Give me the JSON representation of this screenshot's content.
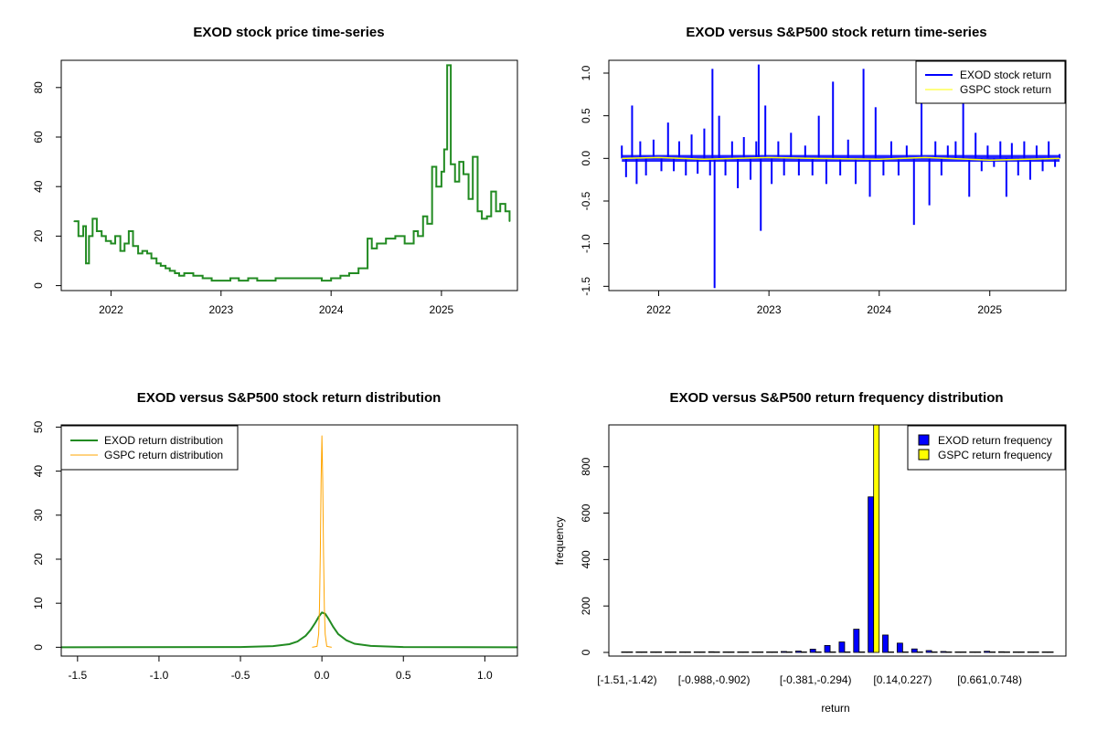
{
  "colors": {
    "price_line": "#228B22",
    "exod_return": "#0000FF",
    "gspc_return": "#FFFF00",
    "exod_density": "#228B22",
    "gspc_density": "#FFA500",
    "exod_hist": "#0000FF",
    "gspc_hist": "#FFFF00",
    "axis": "#000000"
  },
  "chart_data": [
    {
      "id": "price",
      "type": "line",
      "title": "EXOD stock price time-series",
      "xlabel": "",
      "ylabel": "",
      "x_scale": "date",
      "xlim": [
        "2021-07-20",
        "2025-09-10"
      ],
      "ylim": [
        -2,
        91
      ],
      "x_ticks": [
        {
          "label": "2022",
          "value": "2022-01-01"
        },
        {
          "label": "2023",
          "value": "2023-01-01"
        },
        {
          "label": "2024",
          "value": "2024-01-01"
        },
        {
          "label": "2025",
          "value": "2025-01-01"
        }
      ],
      "y_ticks": [
        0,
        20,
        40,
        60,
        80
      ],
      "series": [
        {
          "color_key": "price_line",
          "x": [
            "2021-09-01",
            "2021-09-15",
            "2021-10-01",
            "2021-10-10",
            "2021-10-20",
            "2021-11-01",
            "2021-11-15",
            "2021-12-01",
            "2021-12-15",
            "2022-01-01",
            "2022-01-15",
            "2022-02-01",
            "2022-02-15",
            "2022-03-01",
            "2022-03-15",
            "2022-04-01",
            "2022-04-15",
            "2022-05-01",
            "2022-05-15",
            "2022-06-01",
            "2022-06-15",
            "2022-07-01",
            "2022-07-15",
            "2022-08-01",
            "2022-08-15",
            "2022-09-01",
            "2022-10-01",
            "2022-11-01",
            "2022-12-01",
            "2023-01-01",
            "2023-02-01",
            "2023-03-01",
            "2023-04-01",
            "2023-05-01",
            "2023-06-01",
            "2023-07-01",
            "2023-08-01",
            "2023-09-01",
            "2023-10-01",
            "2023-11-01",
            "2023-12-01",
            "2024-01-01",
            "2024-02-01",
            "2024-03-01",
            "2024-04-01",
            "2024-05-01",
            "2024-05-15",
            "2024-06-01",
            "2024-07-01",
            "2024-08-01",
            "2024-09-01",
            "2024-10-01",
            "2024-10-15",
            "2024-11-01",
            "2024-11-15",
            "2024-12-01",
            "2024-12-15",
            "2025-01-01",
            "2025-01-10",
            "2025-01-20",
            "2025-02-01",
            "2025-02-15",
            "2025-03-01",
            "2025-03-15",
            "2025-04-01",
            "2025-04-15",
            "2025-05-01",
            "2025-05-15",
            "2025-06-01",
            "2025-06-15",
            "2025-07-01",
            "2025-07-15",
            "2025-08-01",
            "2025-08-15"
          ],
          "y": [
            26,
            20,
            24,
            9,
            20,
            27,
            22,
            20,
            18,
            17,
            20,
            14,
            17,
            22,
            16,
            13,
            14,
            13,
            11,
            9,
            8,
            7,
            6,
            5,
            4,
            5,
            4,
            3,
            2,
            2,
            3,
            2,
            3,
            2,
            2,
            3,
            3,
            3,
            3,
            3,
            2,
            3,
            4,
            5,
            7,
            19,
            15,
            17,
            19,
            20,
            17,
            22,
            20,
            28,
            25,
            48,
            40,
            46,
            55,
            89,
            49,
            42,
            50,
            45,
            35,
            52,
            30,
            27,
            28,
            38,
            30,
            33,
            30,
            26
          ]
        }
      ]
    },
    {
      "id": "returns",
      "type": "line",
      "title": "EXOD versus S&P500 stock return time-series",
      "xlabel": "",
      "ylabel": "",
      "x_scale": "date",
      "xlim": [
        "2021-07-20",
        "2025-09-10"
      ],
      "ylim": [
        -1.55,
        1.15
      ],
      "x_ticks": [
        {
          "label": "2022",
          "value": "2022-01-01"
        },
        {
          "label": "2023",
          "value": "2023-01-01"
        },
        {
          "label": "2024",
          "value": "2024-01-01"
        },
        {
          "label": "2025",
          "value": "2025-01-01"
        }
      ],
      "y_ticks": [
        {
          "label": "-1.5",
          "value": -1.5
        },
        {
          "label": "-1.0",
          "value": -1.0
        },
        {
          "label": "-0.5",
          "value": -0.5
        },
        {
          "label": "0.0",
          "value": 0.0
        },
        {
          "label": "0.5",
          "value": 0.5
        },
        {
          "label": "1.0",
          "value": 1.0
        }
      ],
      "legend": {
        "position": "top-right",
        "entries": [
          "EXOD stock return",
          "GSPC stock return"
        ]
      },
      "series": [
        {
          "name": "EXOD stock return",
          "color_key": "exod_return",
          "x": [
            "2021-09-01",
            "2021-09-15",
            "2021-10-05",
            "2021-10-20",
            "2021-11-01",
            "2021-11-20",
            "2021-12-15",
            "2022-01-10",
            "2022-02-01",
            "2022-02-20",
            "2022-03-10",
            "2022-04-01",
            "2022-04-20",
            "2022-05-10",
            "2022-06-01",
            "2022-06-20",
            "2022-06-28",
            "2022-07-05",
            "2022-07-20",
            "2022-08-10",
            "2022-09-01",
            "2022-09-20",
            "2022-10-10",
            "2022-11-01",
            "2022-11-20",
            "2022-11-28",
            "2022-12-05",
            "2022-12-20",
            "2023-01-10",
            "2023-02-01",
            "2023-02-20",
            "2023-03-15",
            "2023-04-10",
            "2023-05-01",
            "2023-05-25",
            "2023-06-15",
            "2023-07-10",
            "2023-08-01",
            "2023-08-25",
            "2023-09-20",
            "2023-10-15",
            "2023-11-10",
            "2023-12-01",
            "2023-12-20",
            "2024-01-15",
            "2024-02-10",
            "2024-03-05",
            "2024-04-01",
            "2024-04-25",
            "2024-05-20",
            "2024-06-15",
            "2024-07-05",
            "2024-07-25",
            "2024-08-15",
            "2024-09-10",
            "2024-10-05",
            "2024-10-25",
            "2024-11-15",
            "2024-12-05",
            "2024-12-25",
            "2025-01-15",
            "2025-02-05",
            "2025-02-25",
            "2025-03-15",
            "2025-04-05",
            "2025-04-25",
            "2025-05-15",
            "2025-06-05",
            "2025-06-25",
            "2025-07-15",
            "2025-08-05",
            "2025-08-20"
          ],
          "y": [
            0.15,
            -0.22,
            0.62,
            -0.3,
            0.2,
            -0.2,
            0.22,
            -0.15,
            0.42,
            -0.15,
            0.2,
            -0.2,
            0.28,
            -0.18,
            0.35,
            -0.2,
            1.05,
            -1.52,
            0.5,
            -0.2,
            0.2,
            -0.35,
            0.25,
            -0.25,
            0.2,
            1.1,
            -0.85,
            0.62,
            -0.3,
            0.2,
            -0.2,
            0.3,
            -0.2,
            0.15,
            -0.2,
            0.5,
            -0.3,
            0.9,
            -0.2,
            0.22,
            -0.3,
            1.05,
            -0.45,
            0.6,
            -0.2,
            0.2,
            -0.2,
            0.15,
            -0.78,
            0.9,
            -0.55,
            0.2,
            -0.2,
            0.15,
            0.2,
            0.68,
            -0.45,
            0.3,
            -0.15,
            0.15,
            -0.1,
            0.2,
            -0.45,
            0.18,
            -0.2,
            0.2,
            -0.25,
            0.15,
            -0.15,
            0.2,
            -0.1,
            0.05
          ]
        },
        {
          "name": "GSPC stock return",
          "color_key": "gspc_return",
          "x": [
            "2021-09-01",
            "2022-01-01",
            "2022-06-01",
            "2023-01-01",
            "2023-06-01",
            "2024-01-01",
            "2024-06-01",
            "2025-01-01",
            "2025-08-20"
          ],
          "y": [
            0.0,
            0.01,
            -0.01,
            0.01,
            0.0,
            -0.01,
            0.01,
            -0.02,
            0.0
          ]
        }
      ]
    },
    {
      "id": "density",
      "type": "line",
      "title": "EXOD versus S&P500 stock return distribution",
      "xlabel": "",
      "ylabel": "",
      "xlim": [
        -1.6,
        1.2
      ],
      "ylim": [
        -2,
        50.5
      ],
      "x_ticks": [
        {
          "label": "-1.5",
          "value": -1.5
        },
        {
          "label": "-1.0",
          "value": -1.0
        },
        {
          "label": "-0.5",
          "value": -0.5
        },
        {
          "label": "0.0",
          "value": 0.0
        },
        {
          "label": "0.5",
          "value": 0.5
        },
        {
          "label": "1.0",
          "value": 1.0
        }
      ],
      "y_ticks": [
        0,
        10,
        20,
        30,
        40,
        50
      ],
      "legend": {
        "position": "top-left",
        "entries": [
          "EXOD return distribution",
          "GSPC return distribution"
        ]
      },
      "series": [
        {
          "name": "EXOD return distribution",
          "color_key": "exod_density",
          "x": [
            -1.6,
            -0.5,
            -0.3,
            -0.2,
            -0.15,
            -0.1,
            -0.07,
            -0.04,
            -0.02,
            0.0,
            0.02,
            0.04,
            0.07,
            0.1,
            0.15,
            0.2,
            0.3,
            0.5,
            1.2
          ],
          "y": [
            0.0,
            0.05,
            0.25,
            0.7,
            1.3,
            2.6,
            3.9,
            5.6,
            6.9,
            7.9,
            7.6,
            6.5,
            4.6,
            3.0,
            1.6,
            0.8,
            0.3,
            0.05,
            0.0
          ]
        },
        {
          "name": "GSPC return distribution",
          "color_key": "gspc_density",
          "x": [
            -0.06,
            -0.03,
            -0.02,
            -0.015,
            -0.01,
            -0.005,
            0.0,
            0.005,
            0.01,
            0.015,
            0.02,
            0.03,
            0.06
          ],
          "y": [
            0.0,
            0.2,
            3.0,
            9.0,
            21.0,
            38.0,
            48.0,
            38.0,
            21.0,
            9.0,
            3.0,
            0.2,
            0.0
          ]
        }
      ]
    },
    {
      "id": "histogram",
      "type": "bar",
      "title": "EXOD versus S&P500 return frequency distribution",
      "xlabel": "return",
      "ylabel": "frequency",
      "ylim": [
        0,
        980
      ],
      "y_ticks": [
        0,
        200,
        400,
        600,
        800
      ],
      "categories": [
        "[-1.51,-1.42)",
        "[-1.42,-1.34)",
        "[-1.34,-1.25)",
        "[-1.25,-1.16)",
        "[-1.16,-1.07)",
        "[-1.07,-0.988)",
        "[-0.988,-0.902)",
        "[-0.902,-0.815)",
        "[-0.815,-0.728)",
        "[-0.728,-0.641)",
        "[-0.641,-0.555)",
        "[-0.555,-0.468)",
        "[-0.468,-0.381)",
        "[-0.381,-0.294)",
        "[-0.294,-0.208)",
        "[-0.208,-0.121)",
        "[-0.121,-0.0343)",
        "[-0.0343,0.0524)",
        "[0.0524,0.14)",
        "[0.14,0.227)",
        "[0.227,0.314)",
        "[0.314,0.401)",
        "[0.401,0.487)",
        "[0.487,0.574)",
        "[0.574,0.661)",
        "[0.661,0.748)",
        "[0.748,0.834)",
        "[0.834,0.921)",
        "[0.921,1.01)",
        "[1.01,1.1)"
      ],
      "shown_tick_labels": [
        "[-1.51,-1.42)",
        "[-0.988,-0.902)",
        "[-0.381,-0.294)",
        "[0.14,0.227)",
        "[0.661,0.748)"
      ],
      "legend": {
        "position": "top-right",
        "entries": [
          "EXOD return frequency",
          "GSPC return frequency"
        ]
      },
      "series": [
        {
          "name": "EXOD return frequency",
          "color_key": "exod_hist",
          "values": [
            2,
            0,
            0,
            0,
            0,
            1,
            3,
            2,
            0,
            0,
            1,
            4,
            6,
            14,
            30,
            45,
            100,
            670,
            75,
            40,
            15,
            8,
            4,
            2,
            2,
            5,
            3,
            1,
            1,
            2
          ]
        },
        {
          "name": "GSPC return frequency",
          "color_key": "gspc_hist",
          "values": [
            0,
            0,
            0,
            0,
            0,
            0,
            0,
            0,
            0,
            0,
            0,
            0,
            0,
            0,
            0,
            0,
            0,
            1000,
            0,
            0,
            0,
            0,
            0,
            0,
            0,
            0,
            0,
            0,
            0,
            0
          ]
        }
      ]
    }
  ]
}
